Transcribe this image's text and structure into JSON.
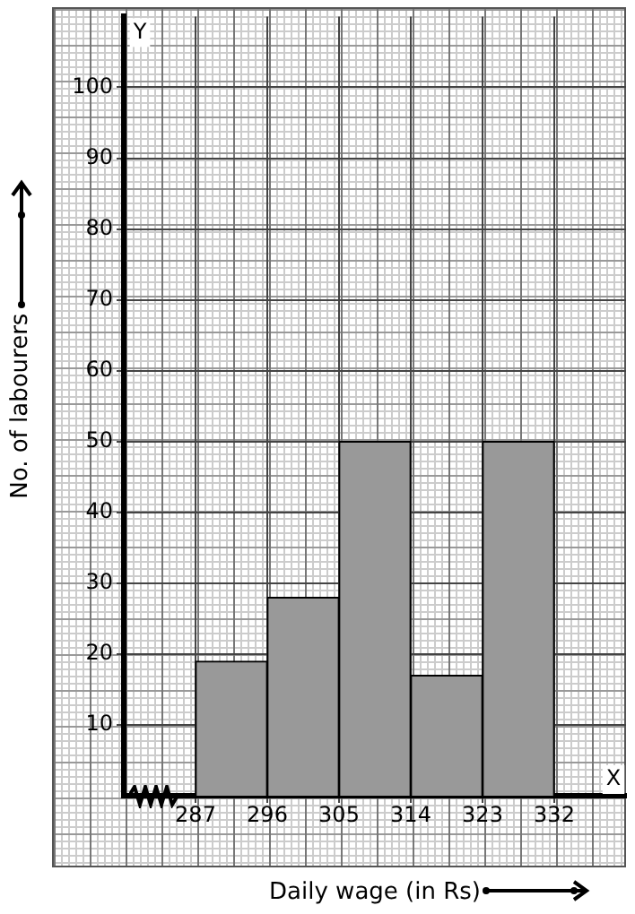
{
  "chart_data": {
    "type": "histogram",
    "xlabel": "Daily wage (in Rs)",
    "ylabel": "No. of labourers",
    "bins": [
      287,
      296,
      305,
      314,
      323,
      332
    ],
    "values": [
      19,
      28,
      50,
      17,
      50
    ],
    "color": "#999999",
    "xlim": [
      278,
      341
    ],
    "xticks": [
      287,
      296,
      305,
      314,
      323,
      332
    ],
    "ylim": [
      0,
      110
    ],
    "yticks": [
      10,
      20,
      30,
      40,
      50,
      60,
      70,
      80,
      90,
      100
    ],
    "grid": true,
    "annotations": [
      "Y",
      "X"
    ]
  }
}
